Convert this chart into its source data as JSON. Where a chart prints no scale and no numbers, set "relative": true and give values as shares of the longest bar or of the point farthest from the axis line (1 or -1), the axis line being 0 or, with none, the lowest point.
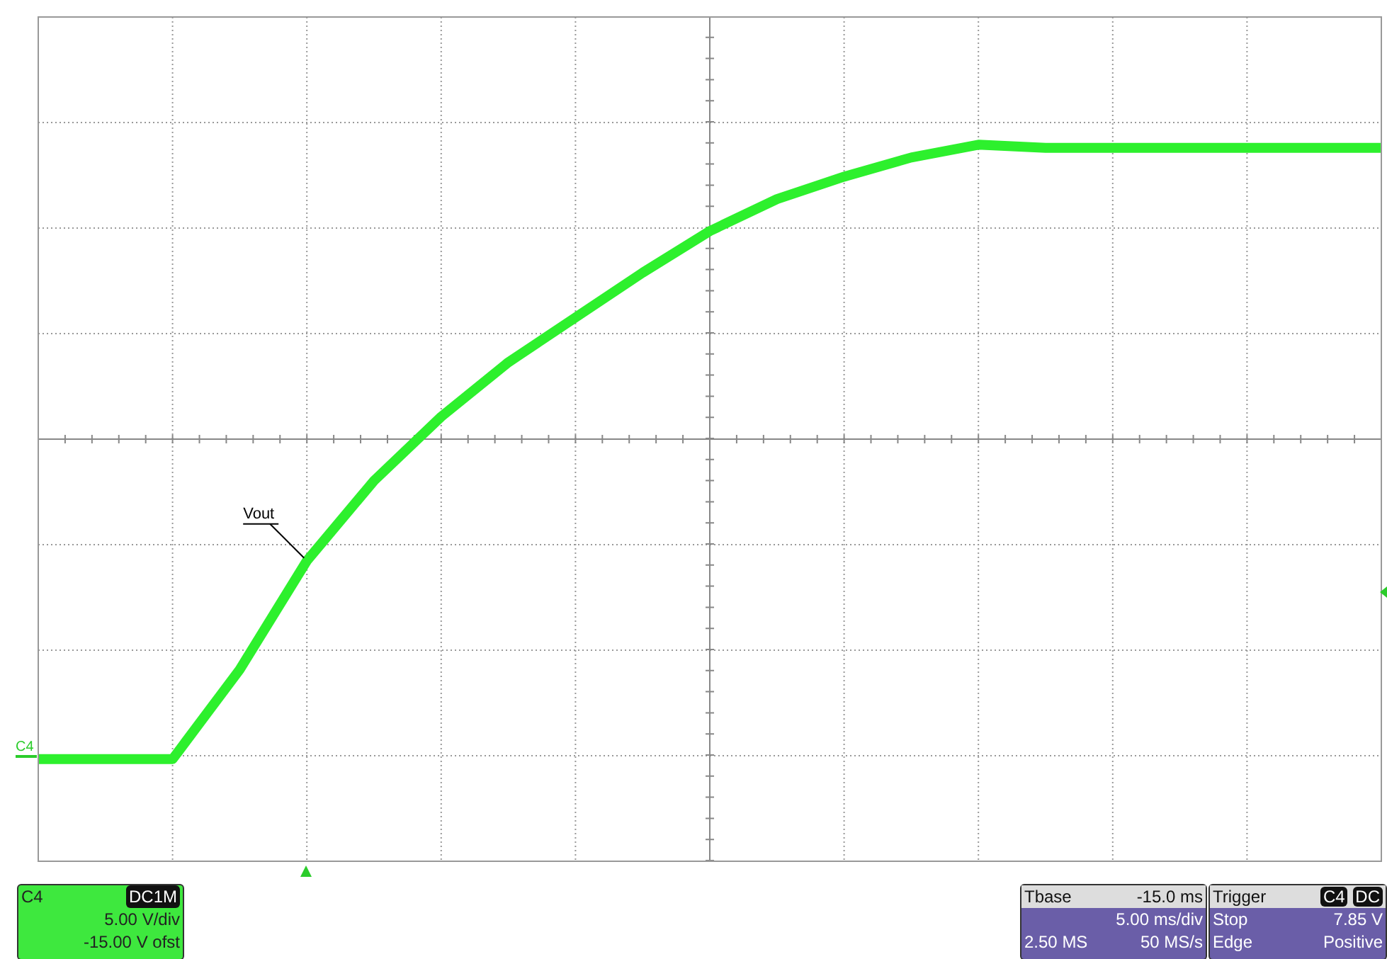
{
  "chart_data": {
    "type": "line",
    "relative": true,
    "grid": true,
    "categories": [
      null,
      null,
      null,
      null,
      null,
      null,
      null,
      null,
      null,
      null,
      null,
      null,
      null,
      null,
      null,
      null,
      null,
      null,
      null,
      null,
      null
    ],
    "series": [
      {
        "name": "Vout",
        "color": "#2df02d",
        "values": [
          -1,
          -1,
          -1,
          -0.72,
          -0.38,
          -0.13,
          0.07,
          0.24,
          0.38,
          0.52,
          0.65,
          0.75,
          0.82,
          0.88,
          0.92,
          0.91,
          0.91,
          0.91,
          0.91,
          0.91,
          0.91
        ]
      }
    ],
    "annotations": [
      "C4",
      "C4",
      "DC1M",
      "5.00 V/div",
      "-15.00 V ofst",
      "Tbase",
      "-15.0 ms",
      "5.00 ms/div",
      "2.50 MS",
      "50 MS/s",
      "Trigger",
      "C4",
      "DC",
      "Stop",
      "7.85 V",
      "Edge",
      "Positive"
    ]
  }
}
